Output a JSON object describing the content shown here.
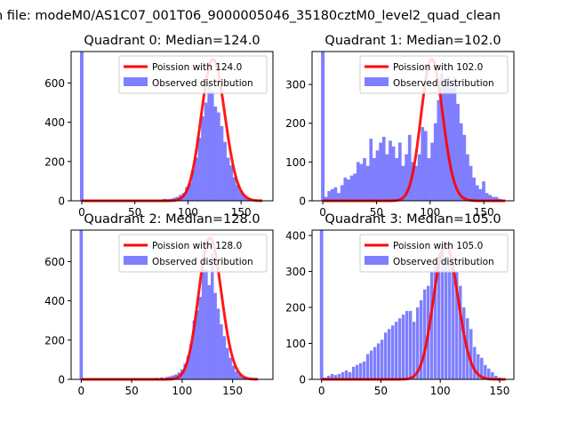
{
  "suptitle": "n file: modeM0/AS1C07_001T06_9000005046_35180cztM0_level2_quad_clean",
  "colors": {
    "hist": "#0000ff",
    "poisson": "#ff0000"
  },
  "chart_data": [
    {
      "type": "bar+line",
      "title": "Quadrant 0: Median=124.0",
      "median": 124.0,
      "xlim": [
        -10,
        180
      ],
      "ylim": [
        0,
        760
      ],
      "xticks": [
        0,
        50,
        100,
        150
      ],
      "yticks": [
        0,
        200,
        400,
        600
      ],
      "bin_width": 3.3,
      "spike": {
        "x": 0,
        "height": 760
      },
      "hist_x": [
        75,
        78,
        81,
        84,
        87,
        90,
        93,
        96,
        99,
        102,
        105,
        108,
        111,
        114,
        117,
        120,
        123,
        126,
        129,
        132,
        135,
        138,
        141,
        144,
        147,
        150,
        153,
        156,
        159,
        162,
        165
      ],
      "hist_y": [
        5,
        10,
        8,
        10,
        15,
        20,
        30,
        40,
        70,
        90,
        160,
        220,
        320,
        430,
        500,
        600,
        560,
        480,
        450,
        380,
        300,
        220,
        180,
        120,
        80,
        50,
        30,
        15,
        10,
        5,
        3
      ],
      "poisson_lambda": 124.0,
      "poisson_peak": 720,
      "poisson_range": [
        0,
        170
      ],
      "legend": {
        "line": "Poission with 124.0",
        "bar": "Observed distribution"
      }
    },
    {
      "type": "bar+line",
      "title": "Quadrant 1: Median=102.0",
      "median": 102.0,
      "xlim": [
        -10,
        178
      ],
      "ylim": [
        0,
        385
      ],
      "xticks": [
        0,
        50,
        100,
        150
      ],
      "yticks": [
        0,
        100,
        200,
        300
      ],
      "bin_width": 3.3,
      "spike": {
        "x": 0,
        "height": 385
      },
      "hist_x": [
        3,
        6,
        9,
        12,
        15,
        18,
        21,
        24,
        27,
        30,
        33,
        36,
        39,
        42,
        45,
        48,
        51,
        54,
        57,
        60,
        63,
        66,
        69,
        72,
        75,
        78,
        81,
        84,
        87,
        90,
        93,
        96,
        99,
        102,
        105,
        108,
        111,
        114,
        117,
        120,
        123,
        126,
        129,
        132,
        135,
        138,
        141,
        144,
        147,
        150,
        153,
        156,
        159,
        162,
        165
      ],
      "hist_y": [
        10,
        25,
        30,
        35,
        20,
        40,
        60,
        55,
        65,
        70,
        100,
        95,
        110,
        90,
        160,
        110,
        130,
        150,
        165,
        120,
        155,
        140,
        110,
        150,
        90,
        120,
        170,
        100,
        90,
        120,
        190,
        180,
        110,
        150,
        200,
        260,
        330,
        300,
        320,
        290,
        320,
        250,
        200,
        170,
        120,
        90,
        60,
        40,
        30,
        50,
        20,
        15,
        10,
        10,
        5
      ],
      "poisson_lambda": 102.0,
      "poisson_peak": 365,
      "poisson_range": [
        0,
        170
      ],
      "legend": {
        "line": "Poission with 102.0",
        "bar": "Observed distribution"
      }
    },
    {
      "type": "bar+line",
      "title": "Quadrant 2: Median=128.0",
      "median": 128.0,
      "xlim": [
        -10,
        190
      ],
      "ylim": [
        0,
        760
      ],
      "xticks": [
        0,
        50,
        100,
        150
      ],
      "yticks": [
        0,
        200,
        400,
        600
      ],
      "bin_width": 3.3,
      "spike": {
        "x": 0,
        "height": 760
      },
      "hist_x": [
        70,
        75,
        80,
        85,
        88,
        91,
        94,
        97,
        100,
        103,
        106,
        109,
        112,
        115,
        118,
        121,
        124,
        127,
        130,
        133,
        136,
        139,
        142,
        145,
        148,
        151,
        154,
        157,
        160,
        163,
        166,
        170
      ],
      "hist_y": [
        5,
        8,
        10,
        12,
        15,
        20,
        25,
        35,
        50,
        80,
        120,
        180,
        300,
        350,
        420,
        560,
        560,
        480,
        640,
        440,
        360,
        280,
        220,
        160,
        110,
        70,
        40,
        25,
        15,
        10,
        5,
        3
      ],
      "poisson_lambda": 128.0,
      "poisson_peak": 720,
      "poisson_range": [
        0,
        175
      ],
      "legend": {
        "line": "Poission with 128.0",
        "bar": "Observed distribution"
      }
    },
    {
      "type": "bar+line",
      "title": "Quadrant 3: Median=105.0",
      "median": 105.0,
      "xlim": [
        -8,
        162
      ],
      "ylim": [
        0,
        415
      ],
      "xticks": [
        0,
        50,
        100,
        150
      ],
      "yticks": [
        0,
        100,
        200,
        300,
        400
      ],
      "bin_width": 2.8,
      "spike": {
        "x": 0,
        "height": 415
      },
      "hist_x": [
        3,
        6,
        9,
        12,
        15,
        18,
        21,
        24,
        27,
        30,
        33,
        36,
        39,
        42,
        45,
        48,
        51,
        54,
        57,
        60,
        63,
        66,
        69,
        72,
        75,
        78,
        81,
        84,
        87,
        90,
        93,
        96,
        99,
        102,
        105,
        108,
        111,
        114,
        117,
        120,
        123,
        126,
        129,
        132,
        135,
        138,
        141,
        144,
        147,
        150
      ],
      "hist_y": [
        5,
        10,
        15,
        12,
        15,
        20,
        25,
        20,
        35,
        40,
        45,
        50,
        70,
        80,
        90,
        100,
        110,
        130,
        140,
        150,
        160,
        170,
        180,
        190,
        190,
        160,
        200,
        220,
        250,
        260,
        300,
        320,
        350,
        360,
        340,
        320,
        310,
        300,
        260,
        200,
        170,
        140,
        90,
        70,
        60,
        40,
        30,
        20,
        10,
        5
      ],
      "poisson_lambda": 105.0,
      "poisson_peak": 375,
      "poisson_range": [
        0,
        155
      ],
      "legend": {
        "line": "Poission with 105.0",
        "bar": "Observed distribution"
      }
    }
  ]
}
